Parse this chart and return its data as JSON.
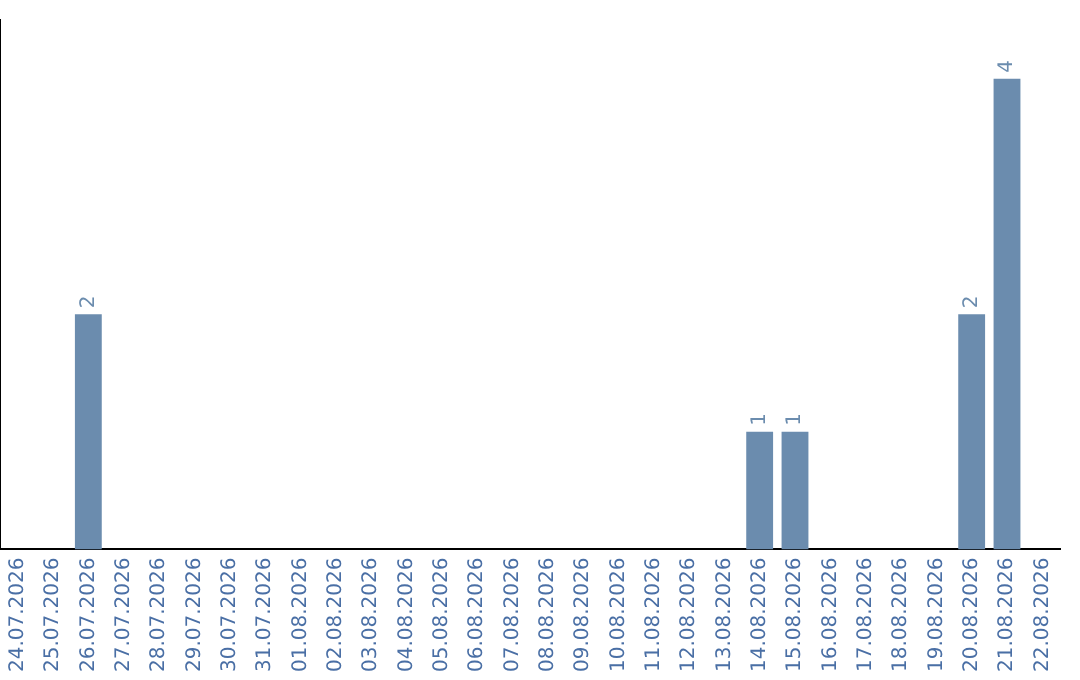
{
  "chart_data": {
    "type": "bar",
    "categories": [
      "24.07.2026",
      "25.07.2026",
      "26.07.2026",
      "27.07.2026",
      "28.07.2026",
      "29.07.2026",
      "30.07.2026",
      "31.07.2026",
      "01.08.2026",
      "02.08.2026",
      "03.08.2026",
      "04.08.2026",
      "05.08.2026",
      "06.08.2026",
      "07.08.2026",
      "08.08.2026",
      "09.08.2026",
      "10.08.2026",
      "11.08.2026",
      "12.08.2026",
      "13.08.2026",
      "14.08.2026",
      "15.08.2026",
      "16.08.2026",
      "17.08.2026",
      "18.08.2026",
      "19.08.2026",
      "20.08.2026",
      "21.08.2026",
      "22.08.2026"
    ],
    "values": [
      0,
      0,
      2,
      0,
      0,
      0,
      0,
      0,
      0,
      0,
      0,
      0,
      0,
      0,
      0,
      0,
      0,
      0,
      0,
      0,
      0,
      1,
      1,
      0,
      0,
      0,
      0,
      2,
      4,
      0
    ],
    "value_labels": [
      null,
      null,
      "2",
      null,
      null,
      null,
      null,
      null,
      null,
      null,
      null,
      null,
      null,
      null,
      null,
      null,
      null,
      null,
      null,
      null,
      null,
      "1",
      "1",
      null,
      null,
      null,
      null,
      "2",
      "4",
      null
    ],
    "color": "#6b8cae",
    "grid": false,
    "legend": false,
    "tick_labels": "x"
  }
}
